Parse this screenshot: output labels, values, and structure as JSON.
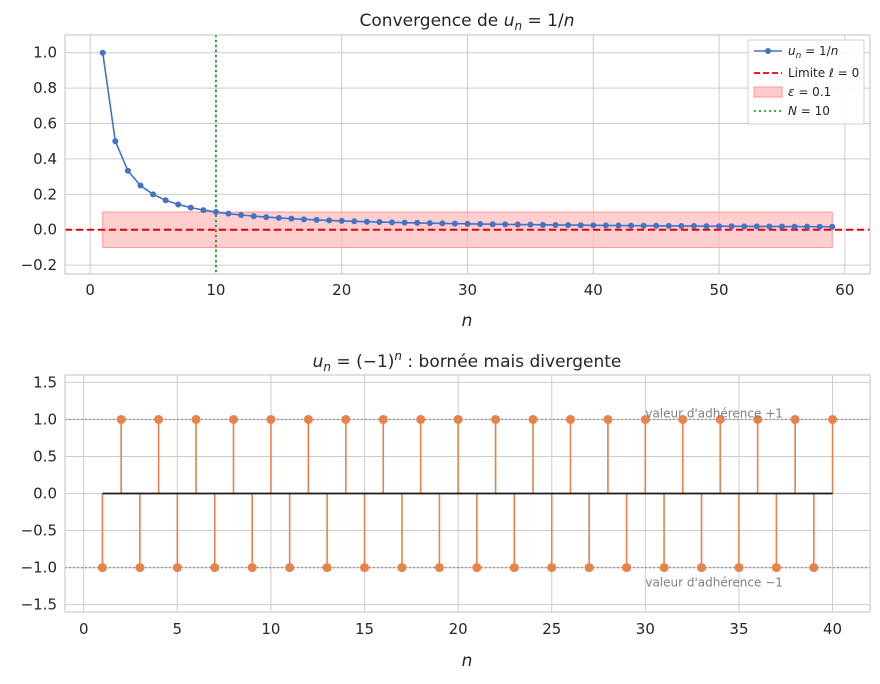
{
  "chart_data": [
    {
      "type": "line",
      "title": "Convergence de u_n = 1/n",
      "title_parts": {
        "prefix": "Convergence de ",
        "math": "u",
        "sub": "n",
        "rest": " = 1/",
        "var": "n"
      },
      "xlabel": "n",
      "ylabel": "",
      "xlim": [
        -2,
        62
      ],
      "ylim": [
        -0.25,
        1.1
      ],
      "xticks": [
        0,
        10,
        20,
        30,
        40,
        50,
        60
      ],
      "yticks": [
        -0.2,
        0.0,
        0.2,
        0.4,
        0.6,
        0.8,
        1.0
      ],
      "ytick_labels": [
        "−0.2",
        "0.0",
        "0.2",
        "0.4",
        "0.6",
        "0.8",
        "1.0"
      ],
      "grid": true,
      "legend_position": "top-right",
      "series": [
        {
          "name": "u_n = 1/n",
          "kind": "line-markers",
          "color": "#4472c4",
          "n_start": 1,
          "n_end": 59,
          "formula": "1/n"
        },
        {
          "name": "Limite ℓ = 0",
          "kind": "hline",
          "color": "#e0000b",
          "y": 0
        },
        {
          "name": "ε = 0.1",
          "kind": "band",
          "color": "#ffb3b3",
          "x": [
            1,
            59
          ],
          "y": [
            -0.1,
            0.1
          ]
        },
        {
          "name": "N = 10",
          "kind": "vline",
          "color": "#2ca02c",
          "x": 10
        }
      ],
      "legend": [
        {
          "label": "u_n = 1/n"
        },
        {
          "label": "Limite ℓ = 0"
        },
        {
          "label": "ε = 0.1"
        },
        {
          "label": "N = 10"
        }
      ]
    },
    {
      "type": "stem",
      "title": "u_n = (−1)^n : bornée mais divergente",
      "title_suffix": " : bornée mais divergente",
      "xlabel": "n",
      "ylabel": "",
      "xlim": [
        -1,
        42
      ],
      "ylim": [
        -1.6,
        1.6
      ],
      "xticks": [
        0,
        5,
        10,
        15,
        20,
        25,
        30,
        35,
        40
      ],
      "yticks": [
        -1.5,
        -1.0,
        -0.5,
        0.0,
        0.5,
        1.0,
        1.5
      ],
      "ytick_labels": [
        "−1.5",
        "−1.0",
        "−0.5",
        "0.0",
        "0.5",
        "1.0",
        "1.5"
      ],
      "grid": true,
      "color": "#e8824a",
      "n_start": 1,
      "n_end": 40,
      "formula": "(-1)^n",
      "baseline": 0,
      "hlines": [
        1,
        -1
      ],
      "annotations": [
        {
          "text": "valeur d'adhérence +1",
          "x": 30,
          "y": 1.08
        },
        {
          "text": "valeur d'adhérence −1",
          "x": 30,
          "y": -1.2
        }
      ]
    }
  ]
}
